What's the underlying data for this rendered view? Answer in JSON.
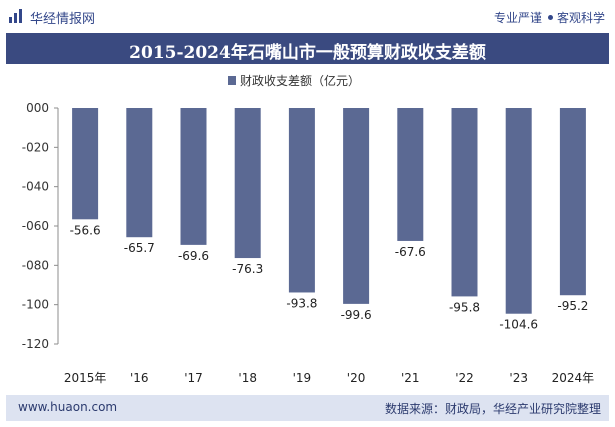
{
  "header": {
    "brand": "华经情报网",
    "slogan_left": "专业严谨",
    "slogan_right": "客观科学"
  },
  "footer": {
    "url": "www.huaon.com",
    "source": "数据来源：财政局，华经产业研究院整理"
  },
  "colors": {
    "bar": "#5b6993",
    "title_bg": "#3a4a80",
    "footer_bg": "#dde3f1"
  },
  "chart_data": {
    "type": "bar",
    "title": "2015-2024年石嘴山市一般预算财政收支差额",
    "legend": "财政收支差额（亿元）",
    "legend_position": "top-center",
    "categories": [
      "2015年",
      "'16",
      "'17",
      "'18",
      "'19",
      "'20",
      "'21",
      "'22",
      "'23",
      "2024年"
    ],
    "values": [
      -56.6,
      -65.7,
      -69.6,
      -76.3,
      -93.8,
      -99.6,
      -67.6,
      -95.8,
      -104.6,
      -95.2
    ],
    "value_labels": [
      "-56.6",
      "-65.7",
      "-69.6",
      "-76.3",
      "-93.8",
      "-99.6",
      "-67.6",
      "-95.8",
      "-104.6",
      "-95.2"
    ],
    "ylim": [
      -120,
      0
    ],
    "yticks": [
      0,
      -20,
      -40,
      -60,
      -80,
      -100,
      -120
    ],
    "ytick_labels": [
      "000",
      "-020",
      "-040",
      "-060",
      "-080",
      "-100",
      "-120"
    ],
    "grid": false
  }
}
